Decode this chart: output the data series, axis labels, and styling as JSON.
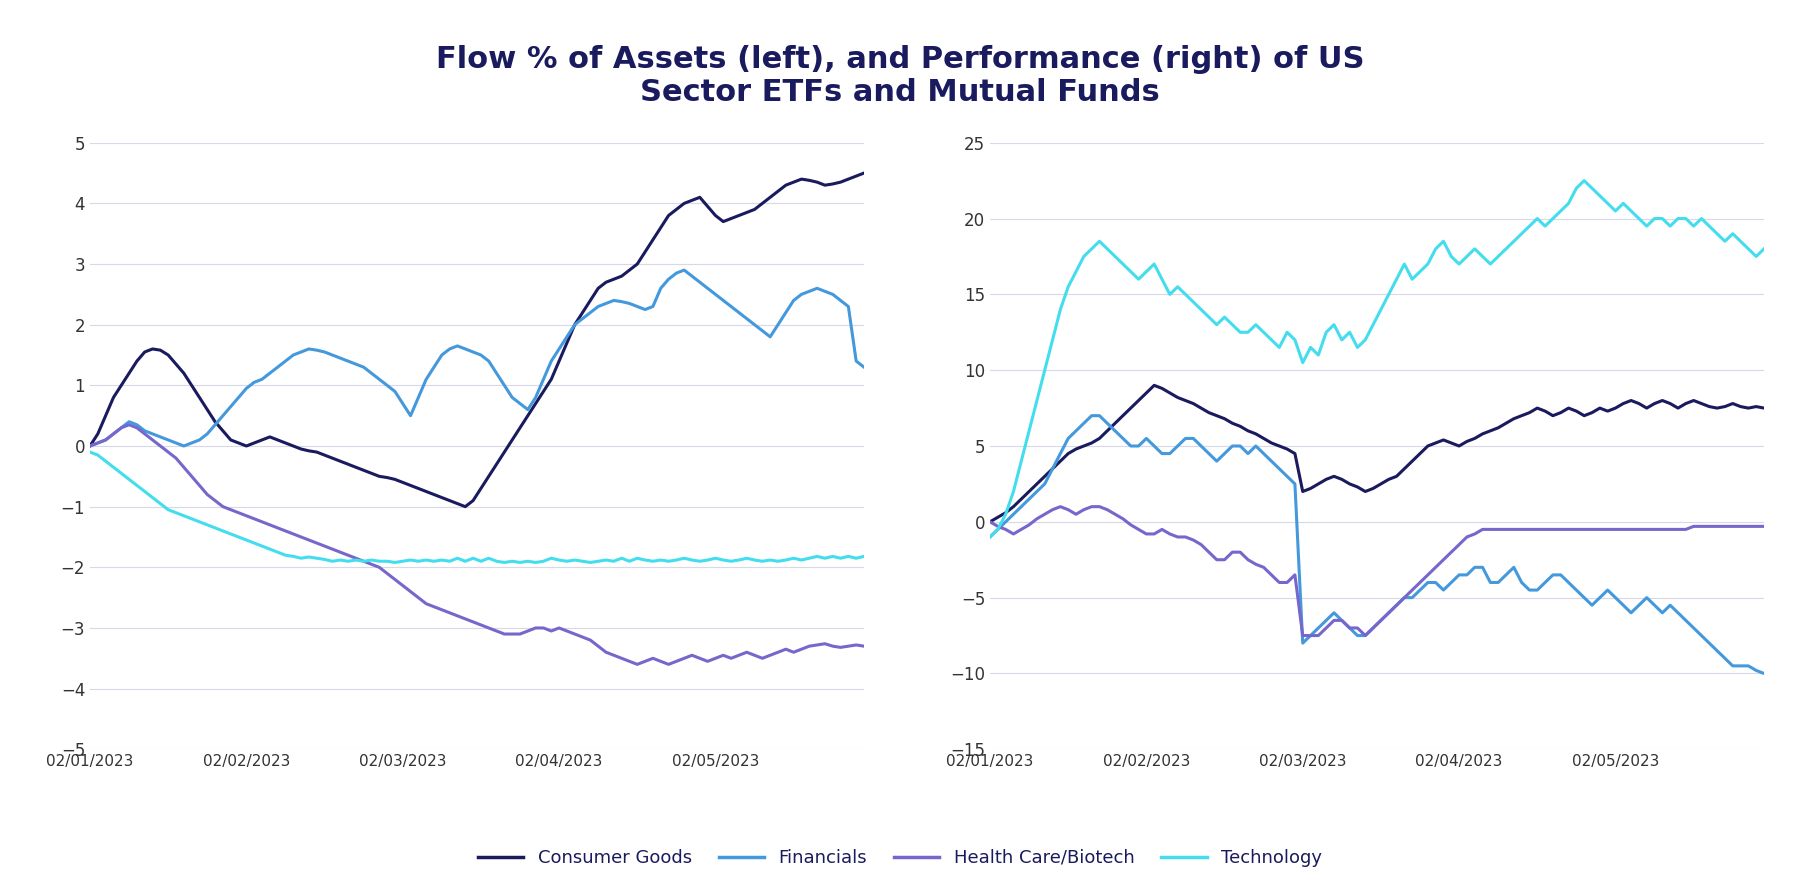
{
  "title": "Flow % of Assets (left), and Performance (right) of US\nSector ETFs and Mutual Funds",
  "title_color": "#1a1a5e",
  "title_fontsize": 22,
  "background_color": "#ffffff",
  "grid_color": "#d8d8e8",
  "legend_labels": [
    "Consumer Goods",
    "Financials",
    "Health Care/Biotech",
    "Technology"
  ],
  "colors": {
    "consumer_goods": "#1a1a5e",
    "financials": "#4499dd",
    "health_care": "#7766cc",
    "technology": "#44ddee"
  },
  "left_ylim": [
    -5,
    5
  ],
  "left_yticks": [
    -5,
    -4,
    -3,
    -2,
    -1,
    0,
    1,
    2,
    3,
    4,
    5
  ],
  "right_ylim": [
    -15,
    25
  ],
  "right_yticks": [
    -15,
    -10,
    -5,
    0,
    5,
    10,
    15,
    20,
    25
  ],
  "xtick_labels": [
    "02/01/2023",
    "02/02/2023",
    "02/03/2023",
    "02/04/2023",
    "02/05/2023"
  ],
  "xtick_positions": [
    0,
    20,
    40,
    60,
    80
  ],
  "n_points": 100,
  "left_flow": {
    "consumer_goods": [
      0.0,
      0.2,
      0.5,
      0.8,
      1.0,
      1.2,
      1.4,
      1.55,
      1.6,
      1.58,
      1.5,
      1.35,
      1.2,
      1.0,
      0.8,
      0.6,
      0.4,
      0.25,
      0.1,
      0.05,
      0.0,
      0.05,
      0.1,
      0.15,
      0.1,
      0.05,
      0.0,
      -0.05,
      -0.08,
      -0.1,
      -0.15,
      -0.2,
      -0.25,
      -0.3,
      -0.35,
      -0.4,
      -0.45,
      -0.5,
      -0.52,
      -0.55,
      -0.6,
      -0.65,
      -0.7,
      -0.75,
      -0.8,
      -0.85,
      -0.9,
      -0.95,
      -1.0,
      -0.9,
      -0.7,
      -0.5,
      -0.3,
      -0.1,
      0.1,
      0.3,
      0.5,
      0.7,
      0.9,
      1.1,
      1.4,
      1.7,
      2.0,
      2.2,
      2.4,
      2.6,
      2.7,
      2.75,
      2.8,
      2.9,
      3.0,
      3.2,
      3.4,
      3.6,
      3.8,
      3.9,
      4.0,
      4.05,
      4.1,
      3.95,
      3.8,
      3.7,
      3.75,
      3.8,
      3.85,
      3.9,
      4.0,
      4.1,
      4.2,
      4.3,
      4.35,
      4.4,
      4.38,
      4.35,
      4.3,
      4.32,
      4.35,
      4.4,
      4.45,
      4.5
    ],
    "financials": [
      0.0,
      0.05,
      0.1,
      0.2,
      0.3,
      0.4,
      0.35,
      0.25,
      0.2,
      0.15,
      0.1,
      0.05,
      0.0,
      0.05,
      0.1,
      0.2,
      0.35,
      0.5,
      0.65,
      0.8,
      0.95,
      1.05,
      1.1,
      1.2,
      1.3,
      1.4,
      1.5,
      1.55,
      1.6,
      1.58,
      1.55,
      1.5,
      1.45,
      1.4,
      1.35,
      1.3,
      1.2,
      1.1,
      1.0,
      0.9,
      0.7,
      0.5,
      0.8,
      1.1,
      1.3,
      1.5,
      1.6,
      1.65,
      1.6,
      1.55,
      1.5,
      1.4,
      1.2,
      1.0,
      0.8,
      0.7,
      0.6,
      0.8,
      1.1,
      1.4,
      1.6,
      1.8,
      2.0,
      2.1,
      2.2,
      2.3,
      2.35,
      2.4,
      2.38,
      2.35,
      2.3,
      2.25,
      2.3,
      2.6,
      2.75,
      2.85,
      2.9,
      2.8,
      2.7,
      2.6,
      2.5,
      2.4,
      2.3,
      2.2,
      2.1,
      2.0,
      1.9,
      1.8,
      2.0,
      2.2,
      2.4,
      2.5,
      2.55,
      2.6,
      2.55,
      2.5,
      2.4,
      2.3,
      1.4,
      1.3
    ],
    "health_care": [
      0.0,
      0.05,
      0.1,
      0.2,
      0.3,
      0.35,
      0.3,
      0.2,
      0.1,
      0.0,
      -0.1,
      -0.2,
      -0.35,
      -0.5,
      -0.65,
      -0.8,
      -0.9,
      -1.0,
      -1.05,
      -1.1,
      -1.15,
      -1.2,
      -1.25,
      -1.3,
      -1.35,
      -1.4,
      -1.45,
      -1.5,
      -1.55,
      -1.6,
      -1.65,
      -1.7,
      -1.75,
      -1.8,
      -1.85,
      -1.9,
      -1.95,
      -2.0,
      -2.1,
      -2.2,
      -2.3,
      -2.4,
      -2.5,
      -2.6,
      -2.65,
      -2.7,
      -2.75,
      -2.8,
      -2.85,
      -2.9,
      -2.95,
      -3.0,
      -3.05,
      -3.1,
      -3.1,
      -3.1,
      -3.05,
      -3.0,
      -3.0,
      -3.05,
      -3.0,
      -3.05,
      -3.1,
      -3.15,
      -3.2,
      -3.3,
      -3.4,
      -3.45,
      -3.5,
      -3.55,
      -3.6,
      -3.55,
      -3.5,
      -3.55,
      -3.6,
      -3.55,
      -3.5,
      -3.45,
      -3.5,
      -3.55,
      -3.5,
      -3.45,
      -3.5,
      -3.45,
      -3.4,
      -3.45,
      -3.5,
      -3.45,
      -3.4,
      -3.35,
      -3.4,
      -3.35,
      -3.3,
      -3.28,
      -3.26,
      -3.3,
      -3.32,
      -3.3,
      -3.28,
      -3.3
    ],
    "technology": [
      -0.1,
      -0.15,
      -0.25,
      -0.35,
      -0.45,
      -0.55,
      -0.65,
      -0.75,
      -0.85,
      -0.95,
      -1.05,
      -1.1,
      -1.15,
      -1.2,
      -1.25,
      -1.3,
      -1.35,
      -1.4,
      -1.45,
      -1.5,
      -1.55,
      -1.6,
      -1.65,
      -1.7,
      -1.75,
      -1.8,
      -1.82,
      -1.85,
      -1.83,
      -1.85,
      -1.87,
      -1.9,
      -1.88,
      -1.9,
      -1.88,
      -1.9,
      -1.88,
      -1.9,
      -1.9,
      -1.92,
      -1.9,
      -1.88,
      -1.9,
      -1.88,
      -1.9,
      -1.88,
      -1.9,
      -1.85,
      -1.9,
      -1.85,
      -1.9,
      -1.85,
      -1.9,
      -1.92,
      -1.9,
      -1.92,
      -1.9,
      -1.92,
      -1.9,
      -1.85,
      -1.88,
      -1.9,
      -1.88,
      -1.9,
      -1.92,
      -1.9,
      -1.88,
      -1.9,
      -1.85,
      -1.9,
      -1.85,
      -1.88,
      -1.9,
      -1.88,
      -1.9,
      -1.88,
      -1.85,
      -1.88,
      -1.9,
      -1.88,
      -1.85,
      -1.88,
      -1.9,
      -1.88,
      -1.85,
      -1.88,
      -1.9,
      -1.88,
      -1.9,
      -1.88,
      -1.85,
      -1.88,
      -1.85,
      -1.82,
      -1.85,
      -1.82,
      -1.85,
      -1.82,
      -1.85,
      -1.82
    ]
  },
  "right_perf": {
    "consumer_goods": [
      0.0,
      0.3,
      0.6,
      1.0,
      1.5,
      2.0,
      2.5,
      3.0,
      3.5,
      4.0,
      4.5,
      4.8,
      5.0,
      5.2,
      5.5,
      6.0,
      6.5,
      7.0,
      7.5,
      8.0,
      8.5,
      9.0,
      8.8,
      8.5,
      8.2,
      8.0,
      7.8,
      7.5,
      7.2,
      7.0,
      6.8,
      6.5,
      6.3,
      6.0,
      5.8,
      5.5,
      5.2,
      5.0,
      4.8,
      4.5,
      2.0,
      2.2,
      2.5,
      2.8,
      3.0,
      2.8,
      2.5,
      2.3,
      2.0,
      2.2,
      2.5,
      2.8,
      3.0,
      3.5,
      4.0,
      4.5,
      5.0,
      5.2,
      5.4,
      5.2,
      5.0,
      5.3,
      5.5,
      5.8,
      6.0,
      6.2,
      6.5,
      6.8,
      7.0,
      7.2,
      7.5,
      7.3,
      7.0,
      7.2,
      7.5,
      7.3,
      7.0,
      7.2,
      7.5,
      7.3,
      7.5,
      7.8,
      8.0,
      7.8,
      7.5,
      7.8,
      8.0,
      7.8,
      7.5,
      7.8,
      8.0,
      7.8,
      7.6,
      7.5,
      7.6,
      7.8,
      7.6,
      7.5,
      7.6,
      7.5
    ],
    "financials": [
      -1.0,
      -0.5,
      0.0,
      0.5,
      1.0,
      1.5,
      2.0,
      2.5,
      3.5,
      4.5,
      5.5,
      6.0,
      6.5,
      7.0,
      7.0,
      6.5,
      6.0,
      5.5,
      5.0,
      5.0,
      5.5,
      5.0,
      4.5,
      4.5,
      5.0,
      5.5,
      5.5,
      5.0,
      4.5,
      4.0,
      4.5,
      5.0,
      5.0,
      4.5,
      5.0,
      4.5,
      4.0,
      3.5,
      3.0,
      2.5,
      -8.0,
      -7.5,
      -7.0,
      -6.5,
      -6.0,
      -6.5,
      -7.0,
      -7.5,
      -7.5,
      -7.0,
      -6.5,
      -6.0,
      -5.5,
      -5.0,
      -5.0,
      -4.5,
      -4.0,
      -4.0,
      -4.5,
      -4.0,
      -3.5,
      -3.5,
      -3.0,
      -3.0,
      -4.0,
      -4.0,
      -3.5,
      -3.0,
      -4.0,
      -4.5,
      -4.5,
      -4.0,
      -3.5,
      -3.5,
      -4.0,
      -4.5,
      -5.0,
      -5.5,
      -5.0,
      -4.5,
      -5.0,
      -5.5,
      -6.0,
      -5.5,
      -5.0,
      -5.5,
      -6.0,
      -5.5,
      -6.0,
      -6.5,
      -7.0,
      -7.5,
      -8.0,
      -8.5,
      -9.0,
      -9.5,
      -9.5,
      -9.5,
      -9.8,
      -10.0
    ],
    "health_care": [
      0.0,
      -0.3,
      -0.5,
      -0.8,
      -0.5,
      -0.2,
      0.2,
      0.5,
      0.8,
      1.0,
      0.8,
      0.5,
      0.8,
      1.0,
      1.0,
      0.8,
      0.5,
      0.2,
      -0.2,
      -0.5,
      -0.8,
      -0.8,
      -0.5,
      -0.8,
      -1.0,
      -1.0,
      -1.2,
      -1.5,
      -2.0,
      -2.5,
      -2.5,
      -2.0,
      -2.0,
      -2.5,
      -2.8,
      -3.0,
      -3.5,
      -4.0,
      -4.0,
      -3.5,
      -7.5,
      -7.5,
      -7.5,
      -7.0,
      -6.5,
      -6.5,
      -7.0,
      -7.0,
      -7.5,
      -7.0,
      -6.5,
      -6.0,
      -5.5,
      -5.0,
      -4.5,
      -4.0,
      -3.5,
      -3.0,
      -2.5,
      -2.0,
      -1.5,
      -1.0,
      -0.8,
      -0.5,
      -0.5,
      -0.5,
      -0.5,
      -0.5,
      -0.5,
      -0.5,
      -0.5,
      -0.5,
      -0.5,
      -0.5,
      -0.5,
      -0.5,
      -0.5,
      -0.5,
      -0.5,
      -0.5,
      -0.5,
      -0.5,
      -0.5,
      -0.5,
      -0.5,
      -0.5,
      -0.5,
      -0.5,
      -0.5,
      -0.5,
      -0.3,
      -0.3,
      -0.3,
      -0.3,
      -0.3,
      -0.3,
      -0.3,
      -0.3,
      -0.3,
      -0.3
    ],
    "technology": [
      -1.0,
      -0.5,
      0.5,
      2.0,
      4.0,
      6.0,
      8.0,
      10.0,
      12.0,
      14.0,
      15.5,
      16.5,
      17.5,
      18.0,
      18.5,
      18.0,
      17.5,
      17.0,
      16.5,
      16.0,
      16.5,
      17.0,
      16.0,
      15.0,
      15.5,
      15.0,
      14.5,
      14.0,
      13.5,
      13.0,
      13.5,
      13.0,
      12.5,
      12.5,
      13.0,
      12.5,
      12.0,
      11.5,
      12.5,
      12.0,
      10.5,
      11.5,
      11.0,
      12.5,
      13.0,
      12.0,
      12.5,
      11.5,
      12.0,
      13.0,
      14.0,
      15.0,
      16.0,
      17.0,
      16.0,
      16.5,
      17.0,
      18.0,
      18.5,
      17.5,
      17.0,
      17.5,
      18.0,
      17.5,
      17.0,
      17.5,
      18.0,
      18.5,
      19.0,
      19.5,
      20.0,
      19.5,
      20.0,
      20.5,
      21.0,
      22.0,
      22.5,
      22.0,
      21.5,
      21.0,
      20.5,
      21.0,
      20.5,
      20.0,
      19.5,
      20.0,
      20.0,
      19.5,
      20.0,
      20.0,
      19.5,
      20.0,
      19.5,
      19.0,
      18.5,
      19.0,
      18.5,
      18.0,
      17.5,
      18.0
    ]
  }
}
